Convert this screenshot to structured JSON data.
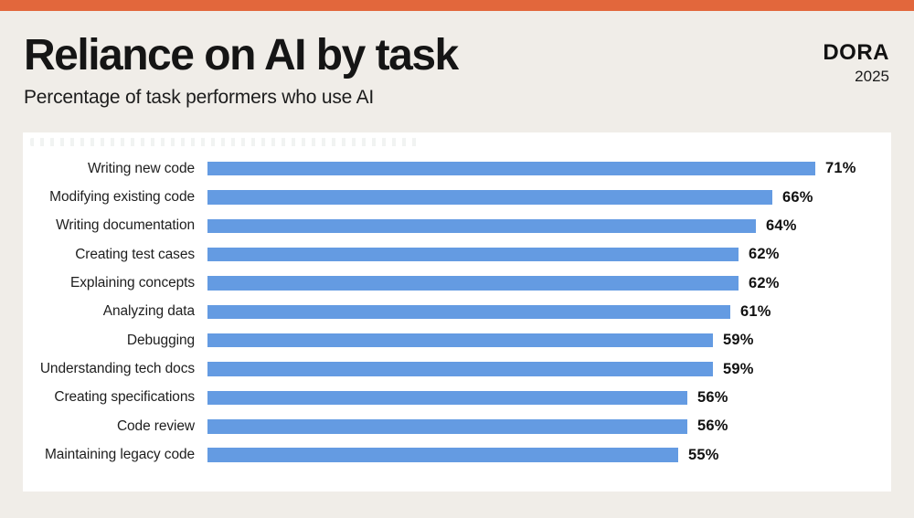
{
  "page": {
    "colors": {
      "accent": "#E2673C",
      "background": "#F0EDE8",
      "panel": "#FFFFFF",
      "bar": "#649BE2"
    }
  },
  "header": {
    "title": "Reliance on AI by task",
    "subtitle": "Percentage of task performers who use AI",
    "brand": {
      "name": "DORA",
      "year": "2025"
    }
  },
  "chart_data": {
    "type": "bar",
    "orientation": "horizontal",
    "title": "Reliance on AI by task",
    "subtitle": "Percentage of task performers who use AI",
    "categories": [
      "Writing new code",
      "Modifying existing code",
      "Writing documentation",
      "Creating test cases",
      "Explaining concepts",
      "Analyzing data",
      "Debugging",
      "Understanding tech docs",
      "Creating specifications",
      "Code review",
      "Maintaining legacy code"
    ],
    "values": [
      71,
      66,
      64,
      62,
      62,
      61,
      59,
      59,
      56,
      56,
      55
    ],
    "value_labels": [
      "71%",
      "66%",
      "64%",
      "62%",
      "62%",
      "61%",
      "59%",
      "59%",
      "56%",
      "56%",
      "55%"
    ],
    "value_suffix": "%",
    "xlim": [
      0,
      75
    ],
    "grid": false,
    "legend": "none",
    "bar_color": "#649BE2",
    "value_label_position": "end-of-bar"
  }
}
